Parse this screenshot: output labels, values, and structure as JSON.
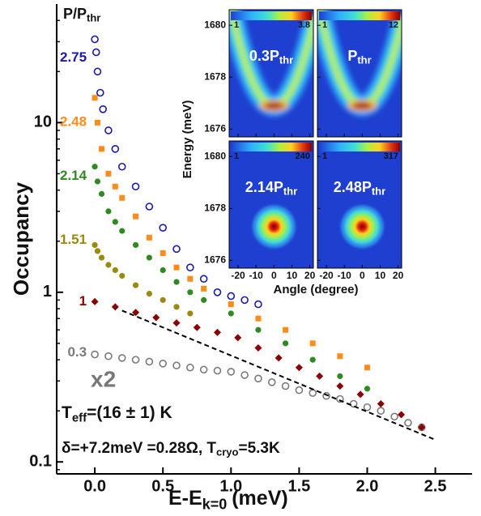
{
  "chart_data": {
    "type": "scatter",
    "header": {
      "main": "P/P",
      "sub": "thr"
    },
    "ylabel": "Occupancy",
    "xlabel": {
      "main": "E-E",
      "sub": "k=0",
      "rest": "(meV)"
    },
    "yscale": "log",
    "xlim": [
      -0.28,
      2.77
    ],
    "ylim": [
      0.085,
      50
    ],
    "xticks": [
      {
        "value": 0,
        "label": "0.0"
      },
      0.5,
      {
        "value": 1,
        "label": "1.0"
      },
      1.5,
      {
        "value": 2,
        "label": "2.0"
      },
      2.5
    ],
    "yticks": [
      0.1,
      1,
      10
    ],
    "series": [
      {
        "name": "0.3",
        "color": "#7a7a7a",
        "marker": "open-circle",
        "x": [
          0,
          0.1,
          0.2,
          0.3,
          0.4,
          0.5,
          0.6,
          0.7,
          0.8,
          0.9,
          1.0,
          1.1,
          1.2,
          1.3,
          1.4,
          1.5,
          1.6,
          1.7,
          1.8,
          1.9,
          2.0,
          2.1,
          2.2,
          2.3,
          2.4
        ],
        "values": [
          0.43,
          0.42,
          0.41,
          0.4,
          0.39,
          0.38,
          0.37,
          0.36,
          0.35,
          0.345,
          0.34,
          0.325,
          0.31,
          0.295,
          0.28,
          0.265,
          0.255,
          0.245,
          0.235,
          0.22,
          0.21,
          0.2,
          0.185,
          0.17,
          0.16
        ]
      },
      {
        "name": "1",
        "color": "#8b0000",
        "marker": "diamond",
        "x": [
          0,
          0.15,
          0.3,
          0.45,
          0.6,
          0.75,
          0.9,
          1.05,
          1.2,
          1.35,
          1.5,
          1.65,
          1.8,
          1.95,
          2.1,
          2.25,
          2.4
        ],
        "values": [
          0.88,
          0.82,
          0.76,
          0.71,
          0.66,
          0.62,
          0.58,
          0.54,
          0.47,
          0.41,
          0.36,
          0.32,
          0.28,
          0.25,
          0.22,
          0.19,
          0.16
        ]
      },
      {
        "name": "1.51",
        "color": "#9a8a10",
        "marker": "dot",
        "x": [
          0,
          0.02,
          0.05,
          0.1,
          0.15,
          0.2,
          0.3,
          0.4,
          0.5,
          0.6,
          0.7
        ],
        "values": [
          1.9,
          1.75,
          1.6,
          1.45,
          1.35,
          1.25,
          1.1,
          0.98,
          0.9,
          0.82,
          0.75
        ]
      },
      {
        "name": "2.14",
        "color": "#2e8b22",
        "marker": "dot",
        "x": [
          0,
          0.02,
          0.05,
          0.1,
          0.15,
          0.2,
          0.3,
          0.4,
          0.5,
          0.6,
          0.7,
          0.8,
          1.0,
          1.2,
          1.4,
          1.6,
          1.8,
          2.0
        ],
        "values": [
          5.5,
          4.5,
          3.8,
          3.0,
          2.6,
          2.3,
          1.9,
          1.6,
          1.35,
          1.15,
          1.0,
          0.9,
          0.75,
          0.6,
          0.5,
          0.4,
          0.32,
          0.27
        ]
      },
      {
        "name": "2.48",
        "color": "#ff8c1a",
        "marker": "square",
        "x": [
          0,
          0.02,
          0.05,
          0.1,
          0.15,
          0.2,
          0.3,
          0.4,
          0.5,
          0.6,
          0.7,
          0.8,
          1.0,
          1.2,
          1.4,
          1.6,
          1.8,
          2.0
        ],
        "values": [
          14,
          10,
          7,
          5,
          4.2,
          3.6,
          2.8,
          2.1,
          1.7,
          1.4,
          1.2,
          1.05,
          0.85,
          0.7,
          0.6,
          0.5,
          0.42,
          0.36
        ]
      },
      {
        "name": "2.75",
        "color": "#1a1aa8",
        "marker": "open-circle",
        "x": [
          0,
          0.01,
          0.02,
          0.04,
          0.06,
          0.1,
          0.15,
          0.2,
          0.3,
          0.4,
          0.5,
          0.6,
          0.7,
          0.8,
          0.9,
          1.0,
          1.1,
          1.2
        ],
        "values": [
          31,
          26,
          20,
          15,
          12,
          9,
          7,
          5.5,
          4.2,
          3.2,
          2.4,
          1.8,
          1.4,
          1.2,
          1.0,
          0.95,
          0.9,
          0.85
        ]
      }
    ],
    "fit": {
      "x": [
        0.2,
        2.5
      ],
      "values": [
        0.78,
        0.135
      ]
    },
    "annotations": {
      "scale": "x2",
      "teff": {
        "main": "T",
        "sub": "eff",
        "rest": "=(16 ± 1) K"
      },
      "detuning": {
        "main": "δ=+7.2meV =0.28Ω, T",
        "sub": "cryo",
        "rest": "=5.3K"
      }
    },
    "inset": {
      "ylabel": "Energy (meV)",
      "xlabel": "Angle (degree)",
      "xlim": [
        -25,
        22
      ],
      "ylim": [
        1675.7,
        1680.6
      ],
      "xticks": [
        -20,
        -10,
        0,
        10,
        20
      ],
      "yticks": [
        1676,
        1678,
        1680
      ],
      "panels": [
        {
          "label": {
            "main": "0.3P",
            "sub": "thr"
          },
          "cbar_min": 1,
          "cbar_max": 3.8,
          "mode": "parabola"
        },
        {
          "label": {
            "main": "P",
            "sub": "thr"
          },
          "cbar_min": 1,
          "cbar_max": 12,
          "mode": "parabola"
        },
        {
          "label": {
            "main": "2.14P",
            "sub": "thr"
          },
          "cbar_min": 1,
          "cbar_max": 240,
          "mode": "spot"
        },
        {
          "label": {
            "main": "2.48P",
            "sub": "thr"
          },
          "cbar_min": 1,
          "cbar_max": 317,
          "mode": "spot"
        }
      ]
    }
  }
}
